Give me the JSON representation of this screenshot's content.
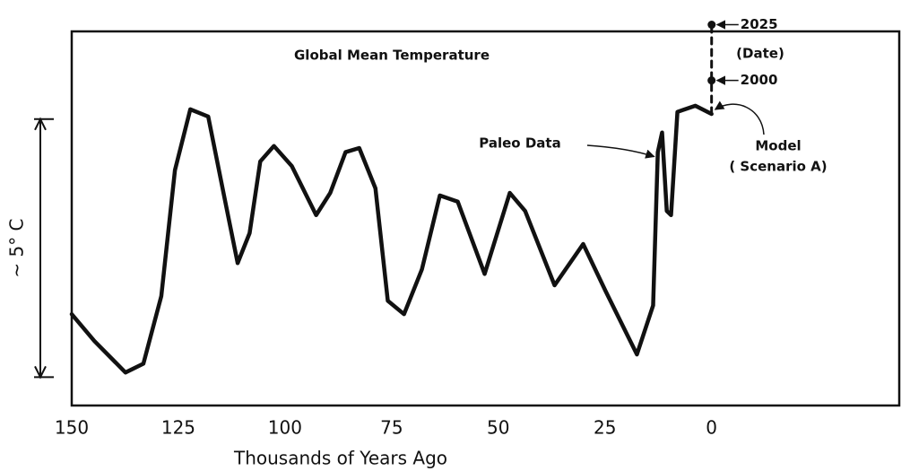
{
  "chart_data": {
    "type": "line",
    "title": "Global Mean Temperature",
    "xlabel": "Thousands of Years Ago",
    "xlim": [
      150,
      -44
    ],
    "xticks": [
      150,
      125,
      100,
      75,
      50,
      25,
      0
    ],
    "ylim": [
      -0.55,
      6.7
    ],
    "y_scale_bar": {
      "label": "~ 5° C",
      "range": [
        0,
        5
      ]
    },
    "series": [
      {
        "color": "#111111",
        "dashed": false,
        "x": [
          150,
          144.7,
          137.4,
          133.2,
          129,
          125.8,
          122.2,
          118,
          114.2,
          111.1,
          108.3,
          105.8,
          102.6,
          98.4,
          92.7,
          89.4,
          85.8,
          82.6,
          78.8,
          75.9,
          72.1,
          67.9,
          63.7,
          59.5,
          53.2,
          47.3,
          43.7,
          36.8,
          30.1,
          24.8,
          17.5,
          13.7,
          12.6,
          11.6,
          10.5,
          9.5,
          8.0,
          3.8,
          0
        ],
        "values": [
          1.22,
          0.7,
          0.09,
          0.26,
          1.57,
          4.01,
          5.19,
          5.05,
          3.48,
          2.21,
          2.79,
          4.18,
          4.48,
          4.09,
          3.14,
          3.57,
          4.36,
          4.44,
          3.66,
          1.48,
          1.22,
          2.09,
          3.52,
          3.4,
          2.0,
          3.57,
          3.22,
          1.78,
          2.58,
          1.66,
          0.44,
          1.39,
          4.36,
          4.74,
          3.22,
          3.14,
          5.14,
          5.26,
          5.1
        ]
      },
      {
        "color": "#111111",
        "dashed": true,
        "x": [
          0,
          0,
          -0.025
        ],
        "values": [
          5.1,
          5.75,
          6.83
        ],
        "point_labels": [
          null,
          "2000",
          "2025"
        ]
      }
    ],
    "annotations": [
      {
        "text": "Paleo Data",
        "target_series": 0,
        "target_index": 32
      },
      {
        "text": "Model",
        "line2": "( Scenario A)",
        "target_series": 1,
        "target_index": 0
      },
      {
        "text": "(Date)"
      }
    ]
  }
}
